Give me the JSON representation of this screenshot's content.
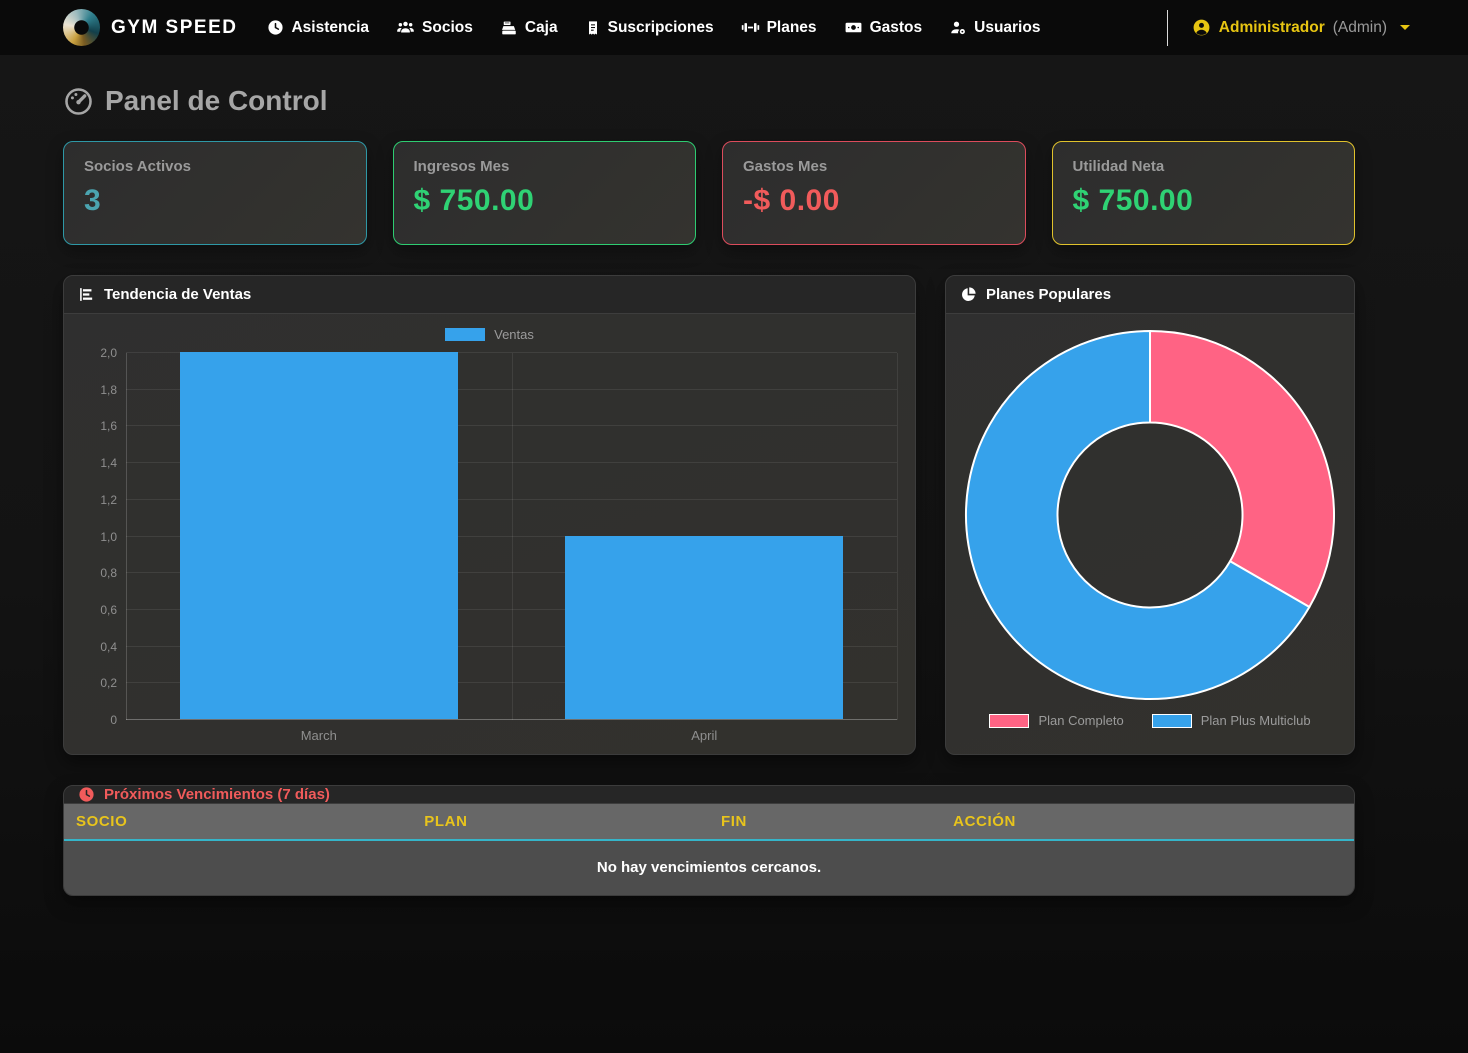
{
  "navbar": {
    "brand": "GYM SPEED",
    "items": [
      {
        "label": "Asistencia",
        "icon": "clock-icon",
        "active": true
      },
      {
        "label": "Socios",
        "icon": "users-icon",
        "active": false
      },
      {
        "label": "Caja",
        "icon": "cash-register-icon",
        "active": false
      },
      {
        "label": "Suscripciones",
        "icon": "receipt-icon",
        "active": false
      },
      {
        "label": "Planes",
        "icon": "dumbbell-icon",
        "active": false
      },
      {
        "label": "Gastos",
        "icon": "money-icon",
        "active": false
      },
      {
        "label": "Usuarios",
        "icon": "user-gear-icon",
        "active": false
      }
    ],
    "user": {
      "name": "Administrador",
      "role": "(Admin)"
    }
  },
  "page": {
    "title": "Panel de Control"
  },
  "stats": [
    {
      "label": "Socios Activos",
      "value": "3",
      "accent": "#4ba4b0",
      "border": "#2e98a6"
    },
    {
      "label": "Ingresos Mes",
      "value": "$ 750.00",
      "accent": "#2fd274",
      "border": "#2ecc71"
    },
    {
      "label": "Gastos Mes",
      "value": "-$ 0.00",
      "accent": "#f15b5b",
      "border": "#dc4c5c"
    },
    {
      "label": "Utilidad Neta",
      "value": "$ 750.00",
      "accent": "#2fd274",
      "border": "#e0c22c"
    }
  ],
  "sales_panel": {
    "title": "Tendencia de Ventas"
  },
  "plans_panel": {
    "title": "Planes Populares"
  },
  "chart_data": [
    {
      "type": "bar",
      "title": "Tendencia de Ventas",
      "categories": [
        "March",
        "April"
      ],
      "series": [
        {
          "name": "Ventas",
          "values": [
            2,
            1
          ],
          "color": "#36a2eb"
        }
      ],
      "xlabel": "",
      "ylabel": "",
      "ylim": [
        0,
        2
      ],
      "y_tick_labels": [
        "0",
        "0,2",
        "0,4",
        "0,6",
        "0,8",
        "1,0",
        "1,2",
        "1,4",
        "1,6",
        "1,8",
        "2,0"
      ],
      "grid": true,
      "legend_position": "top"
    },
    {
      "type": "pie",
      "title": "Planes Populares",
      "labels": [
        "Plan Completo",
        "Plan Plus Multiclub"
      ],
      "values": [
        1,
        2
      ],
      "colors": [
        "#ff6384",
        "#36a2eb"
      ],
      "hole": 0.5,
      "rotation_deg": 0,
      "legend_position": "bottom"
    }
  ],
  "expirations": {
    "title": "Próximos Vencimientos (7 días)",
    "columns": [
      "SOCIO",
      "PLAN",
      "FIN",
      "ACCIÓN"
    ],
    "rows": [],
    "empty_message": "No hay vencimientos cercanos."
  },
  "colors": {
    "accent_teal": "#2e98a6",
    "accent_green": "#2fd274",
    "accent_red": "#f15b5b",
    "accent_yellow": "#e7c512",
    "bar_blue": "#36a2eb",
    "pie_pink": "#ff6384",
    "table_header_text": "#e8c41c",
    "table_header_underline": "#35b5c9"
  }
}
